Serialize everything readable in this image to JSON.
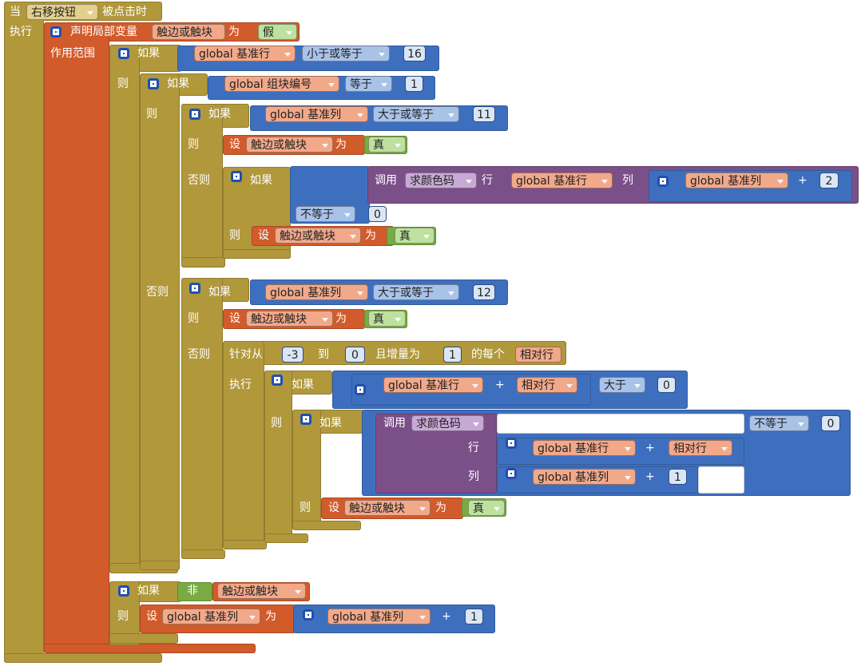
{
  "lines": [
    [
      "当",
      "右移按钮",
      "被点击时"
    ],
    [
      "执行",
      "声明局部变量",
      "触边或触块",
      "为",
      "假"
    ],
    [
      "作用范围",
      "如果",
      "global 基准行",
      "小于或等于",
      16
    ],
    [
      "则",
      "如果",
      "global 组块编号",
      "等于",
      1
    ],
    [
      "则",
      "如果",
      "global 基准列",
      "大于或等于",
      11
    ],
    [
      "则",
      "设",
      "触边或触块",
      "为",
      "真"
    ],
    [
      "否则",
      "如果",
      "调用",
      "求颜色码",
      "行",
      "global 基准行",
      "列",
      "global 基准列",
      "+",
      2
    ],
    [
      "不等于",
      0
    ],
    [
      "则",
      "设",
      "触边或触块",
      "为",
      "真"
    ],
    [
      "否则",
      "如果",
      "global 基准列",
      "大于或等于",
      12
    ],
    [
      "则",
      "设",
      "触边或触块",
      "为",
      "真"
    ],
    [
      "否则",
      "针对从",
      -3,
      "到",
      0,
      "且增量为",
      1,
      "的每个",
      "相对行"
    ],
    [
      "执行",
      "如果",
      "global 基准行",
      "+",
      "相对行",
      "大于",
      0
    ],
    [
      "则",
      "如果",
      "调用",
      "求颜色码",
      "不等于",
      0
    ],
    [
      "行",
      "global 基准行",
      "+",
      "相对行"
    ],
    [
      "列",
      "global 基准列",
      "+",
      1
    ],
    [
      "则",
      "设",
      "触边或触块",
      "为",
      "真"
    ],
    [
      "如果",
      "非",
      "触边或触块"
    ],
    [
      "则",
      "设",
      "global 基准列",
      "为",
      "global 基准列",
      "+",
      1
    ]
  ]
}
